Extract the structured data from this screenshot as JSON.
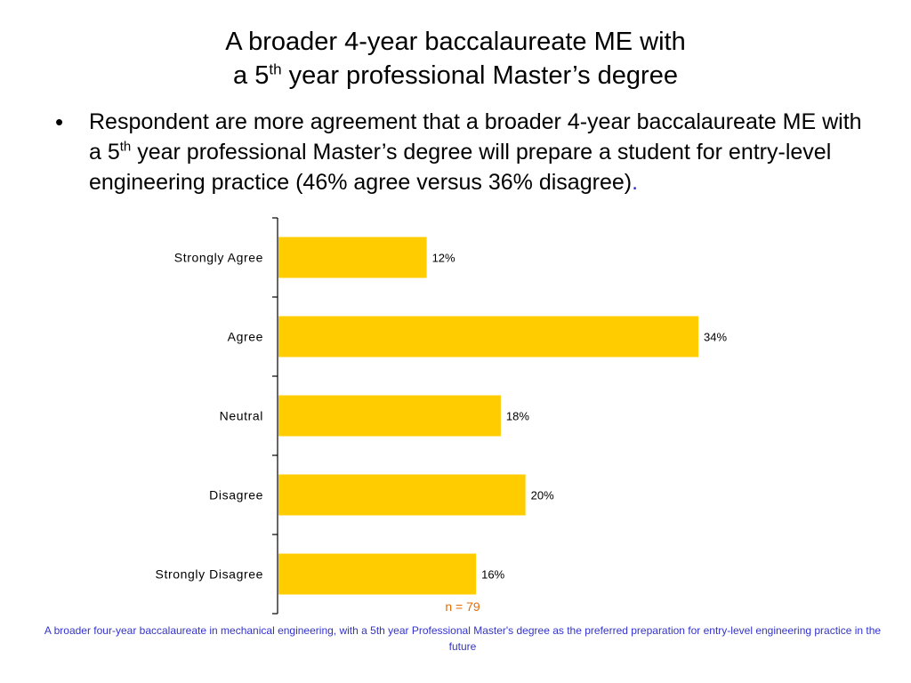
{
  "title": {
    "line1": "A broader 4-year baccalaureate ME with",
    "line2_pre": "a 5",
    "line2_sup": "th",
    "line2_post": " year professional Master’s degree"
  },
  "bullet": {
    "marker": "•",
    "text_pre": "Respondent are more agreement that a broader 4-year baccalaureate ME with a 5",
    "text_sup": "th",
    "text_post": " year professional Master’s degree will prepare a student for entry-level engineering practice (46% agree versus 36% disagree)",
    "text_end": "."
  },
  "chart_data": {
    "type": "bar",
    "orientation": "horizontal",
    "categories": [
      "Strongly Agree",
      "Agree",
      "Neutral",
      "Disagree",
      "Strongly Disagree"
    ],
    "values": [
      12,
      34,
      18,
      20,
      16
    ],
    "data_labels": [
      "12%",
      "34%",
      "18%",
      "20%",
      "16%"
    ],
    "unit": "%",
    "bar_color": "#ffcc00",
    "grid": false,
    "legend": "none",
    "note": "n = 79"
  },
  "caption": "A broader four-year baccalaureate in mechanical engineering, with a 5th year Professional Master's degree as the preferred preparation for entry-level engineering practice in the future"
}
